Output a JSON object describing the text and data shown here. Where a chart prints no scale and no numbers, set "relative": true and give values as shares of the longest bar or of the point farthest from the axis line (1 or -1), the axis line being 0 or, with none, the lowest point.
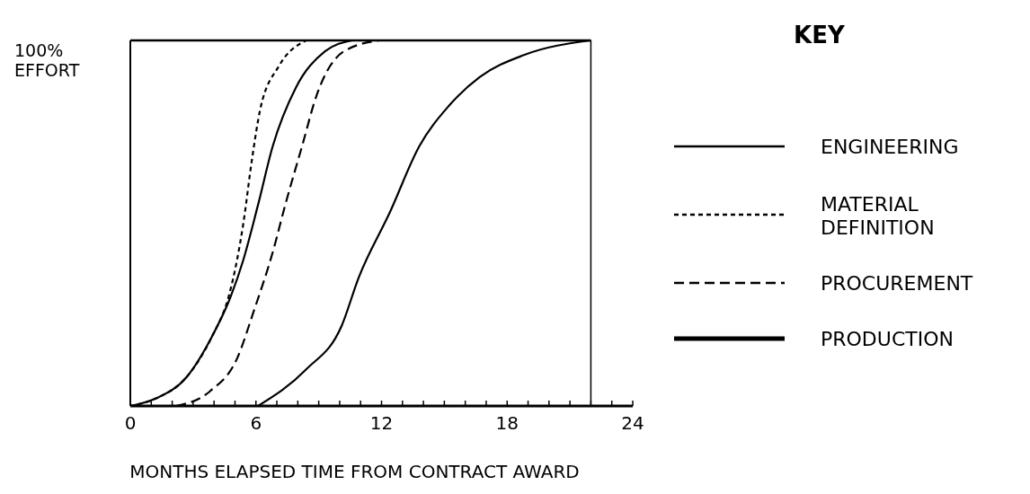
{
  "chart_data": {
    "type": "line",
    "relative": true,
    "ylabel": "100% EFFORT",
    "xlabel": "MONTHS ELAPSED TIME FROM CONTRACT AWARD",
    "legend_title": "KEY",
    "legend": "right",
    "xlim": [
      0,
      24
    ],
    "xticks": [
      0,
      {
        "value": 1,
        "label": null
      },
      {
        "value": 2,
        "label": null
      },
      {
        "value": 3,
        "label": null
      },
      {
        "value": 4,
        "label": null
      },
      {
        "value": 5,
        "label": null
      },
      6,
      {
        "value": 7,
        "label": null
      },
      {
        "value": 8,
        "label": null
      },
      {
        "value": 9,
        "label": null
      },
      {
        "value": 10,
        "label": null
      },
      {
        "value": 11,
        "label": null
      },
      12,
      {
        "value": 13,
        "label": null
      },
      {
        "value": 14,
        "label": null
      },
      {
        "value": 15,
        "label": null
      },
      {
        "value": 16,
        "label": null
      },
      {
        "value": 17,
        "label": null
      },
      18,
      {
        "value": 19,
        "label": null
      },
      {
        "value": 20,
        "label": null
      },
      {
        "value": 21,
        "label": null
      },
      {
        "value": 22,
        "label": null
      },
      {
        "value": 23,
        "label": null
      },
      24
    ],
    "ref_lines": [
      {
        "axis": "y",
        "value": 1
      },
      {
        "axis": "x",
        "value": 22
      }
    ],
    "series": [
      {
        "name": "ENGINEERING",
        "color": "#000000",
        "line_style": "solid",
        "x": [
          0,
          1.2,
          2.7,
          3.9,
          4.8,
          5.4,
          6.1,
          6.8,
          7.9,
          9.3,
          10.6
        ],
        "values": [
          0,
          0.02,
          0.08,
          0.19,
          0.3,
          0.4,
          0.55,
          0.71,
          0.87,
          0.97,
          1
        ]
      },
      {
        "name": "MATERIAL DEFINITION",
        "color": "#000000",
        "line_style": "dotted",
        "x": [
          0,
          1.2,
          2.7,
          3.9,
          4.7,
          5.1,
          5.4,
          5.8,
          6.2,
          7.1,
          8.4
        ],
        "values": [
          0,
          0.02,
          0.08,
          0.19,
          0.3,
          0.4,
          0.5,
          0.67,
          0.81,
          0.93,
          1
        ]
      },
      {
        "name": "PROCUREMENT",
        "color": "#000000",
        "line_style": "dashed",
        "x": [
          2.2,
          3.8,
          5.1,
          5.9,
          6.8,
          7.4,
          8.2,
          8.9,
          10.2,
          11.9
        ],
        "values": [
          0,
          0.04,
          0.13,
          0.26,
          0.42,
          0.55,
          0.71,
          0.85,
          0.97,
          1
        ]
      },
      {
        "name": "PRODUCTION",
        "color": "#000000",
        "line_style": "solid",
        "x": [
          6.1,
          8.4,
          10.1,
          10.9,
          12.4,
          13.8,
          15.2,
          16.7,
          18.8,
          22
        ],
        "values": [
          0,
          0.1,
          0.22,
          0.35,
          0.53,
          0.71,
          0.82,
          0.9,
          0.96,
          1
        ]
      }
    ]
  }
}
